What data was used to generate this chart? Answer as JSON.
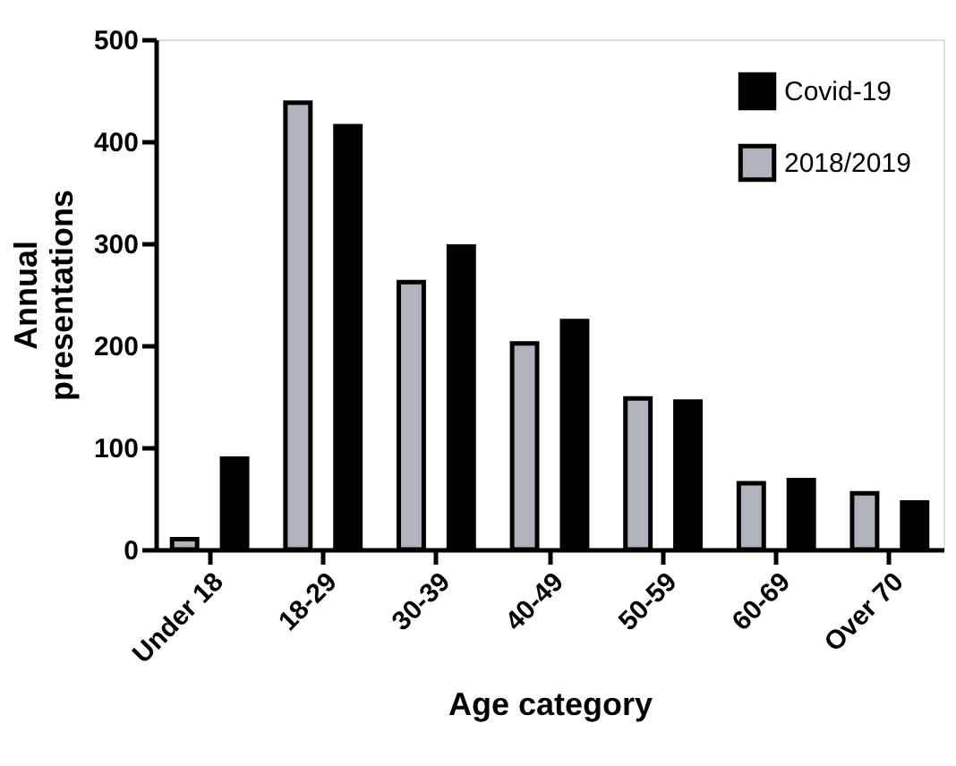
{
  "chart_data": {
    "type": "bar",
    "xlabel": "Age category",
    "ylabel": "Annual presentations",
    "categories": [
      "Under 18",
      "18-29",
      "30-39",
      "40-49",
      "50-59",
      "60-69",
      "Over 70"
    ],
    "series": [
      {
        "name": "2018/2019",
        "color": "#b0b3bc",
        "values": [
          10,
          438,
          262,
          202,
          148,
          65,
          55
        ]
      },
      {
        "name": "Covid-19",
        "color": "#000000",
        "values": [
          89,
          415,
          297,
          224,
          145,
          68,
          46
        ]
      }
    ],
    "ylim": [
      0,
      500
    ],
    "yticks": [
      0,
      100,
      200,
      300,
      400,
      500
    ],
    "grid": false,
    "legend": "top right"
  }
}
